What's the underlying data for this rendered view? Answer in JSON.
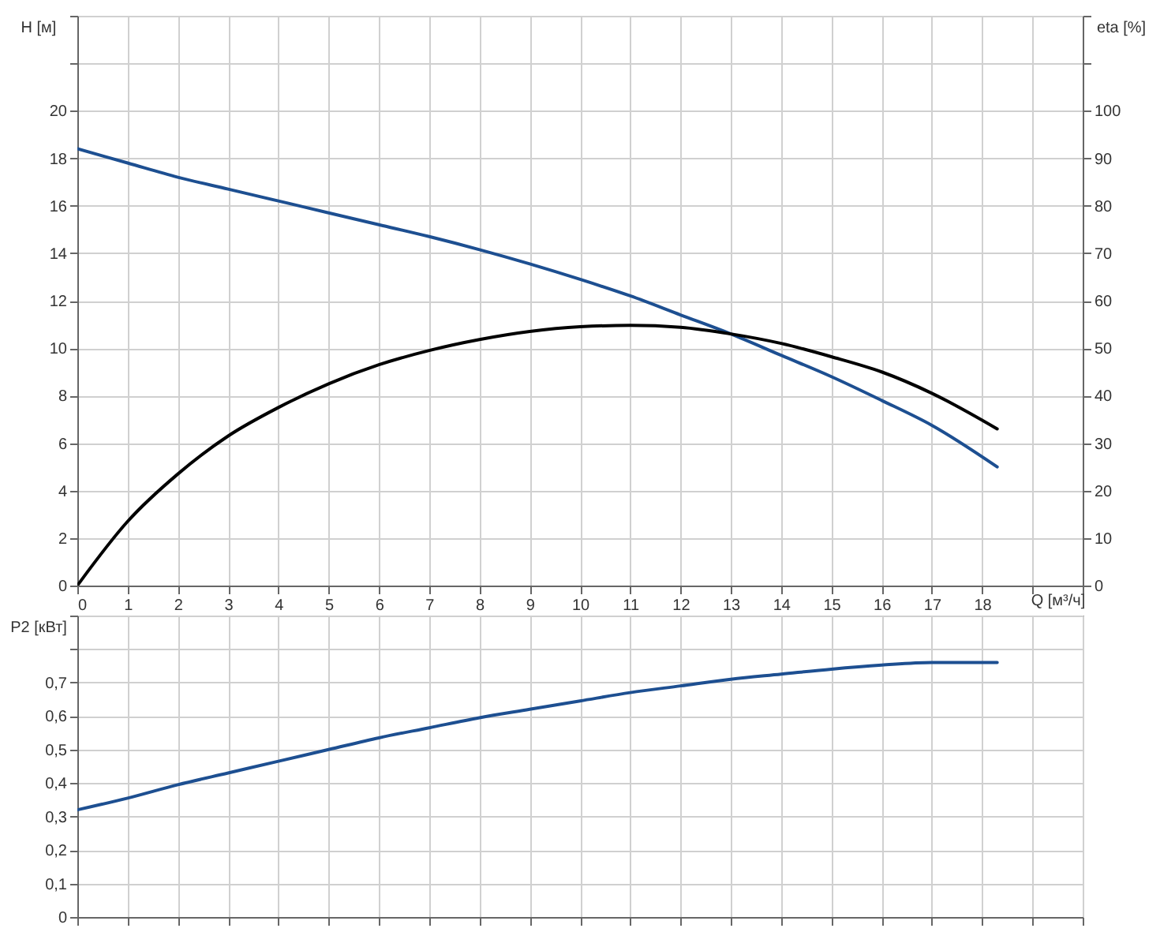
{
  "chart_data": [
    {
      "type": "line",
      "xlabel": "Q [м³/ч]",
      "ylabel": "H [м]",
      "y2label": "eta [%]",
      "xlim": [
        0,
        20
      ],
      "xticks": [
        0,
        1,
        2,
        3,
        4,
        5,
        6,
        7,
        8,
        9,
        10,
        11,
        12,
        13,
        14,
        15,
        16,
        17,
        18,
        {
          "value": 19,
          "label": null
        },
        {
          "value": 20,
          "label": null
        }
      ],
      "ylim": [
        0,
        24
      ],
      "yticks": [
        0,
        2,
        4,
        6,
        8,
        10,
        12,
        14,
        16,
        18,
        20,
        {
          "value": 22,
          "label": null
        },
        {
          "value": 24,
          "label": null
        }
      ],
      "y2lim": [
        0,
        120
      ],
      "y2ticks": [
        0,
        10,
        20,
        30,
        40,
        50,
        60,
        70,
        80,
        90,
        100,
        {
          "value": 110,
          "label": null
        },
        {
          "value": 120,
          "label": null
        }
      ],
      "grid": true,
      "series": [
        {
          "color": "#1d4f91",
          "x": [
            0,
            1,
            2,
            3,
            4,
            5,
            6,
            7,
            8,
            9,
            10,
            11,
            12,
            13,
            14,
            15,
            16,
            17,
            18.3
          ],
          "values": [
            18.4,
            17.8,
            17.2,
            16.7,
            16.2,
            15.7,
            15.2,
            14.7,
            14.15,
            13.55,
            12.9,
            12.2,
            11.4,
            10.6,
            9.7,
            8.8,
            7.8,
            6.75,
            5.0
          ]
        },
        {
          "color": "#000000",
          "axis": "y2",
          "x": [
            0,
            1,
            2,
            3,
            4,
            5,
            6,
            7,
            8,
            9,
            10,
            11,
            12,
            13,
            14,
            15,
            16,
            17,
            18.3
          ],
          "values": [
            0,
            13.5,
            23.5,
            31.5,
            37.5,
            42.5,
            46.5,
            49.5,
            51.8,
            53.5,
            54.5,
            54.8,
            54.4,
            53,
            51,
            48.2,
            45,
            40.5,
            33
          ]
        }
      ]
    },
    {
      "type": "line",
      "ylabel": "P2 [кВт]",
      "xlim": [
        0,
        20
      ],
      "xticks": [
        0,
        1,
        2,
        3,
        4,
        5,
        6,
        7,
        8,
        9,
        10,
        11,
        12,
        13,
        14,
        15,
        16,
        17,
        18,
        19,
        20
      ],
      "ylim": [
        0,
        0.9
      ],
      "yticks": [
        0,
        {
          "value": 0.1,
          "label": "0,1"
        },
        {
          "value": 0.2,
          "label": "0,2"
        },
        {
          "value": 0.3,
          "label": "0,3"
        },
        {
          "value": 0.4,
          "label": "0,4"
        },
        {
          "value": 0.5,
          "label": "0,5"
        },
        {
          "value": 0.6,
          "label": "0,6"
        },
        {
          "value": 0.7,
          "label": "0,7"
        },
        {
          "value": 0.8,
          "label": null
        },
        {
          "value": 0.9,
          "label": null
        }
      ],
      "grid": true,
      "tick_labels": "y",
      "series": [
        {
          "color": "#1d4f91",
          "x": [
            0,
            1,
            2,
            3,
            4,
            5,
            6,
            7,
            8,
            9,
            10,
            11,
            12,
            13,
            14,
            15,
            16,
            17,
            18.3
          ],
          "values": [
            0.32,
            0.355,
            0.395,
            0.43,
            0.465,
            0.5,
            0.535,
            0.565,
            0.595,
            0.62,
            0.645,
            0.67,
            0.69,
            0.71,
            0.725,
            0.74,
            0.752,
            0.76,
            0.76
          ]
        }
      ]
    }
  ]
}
